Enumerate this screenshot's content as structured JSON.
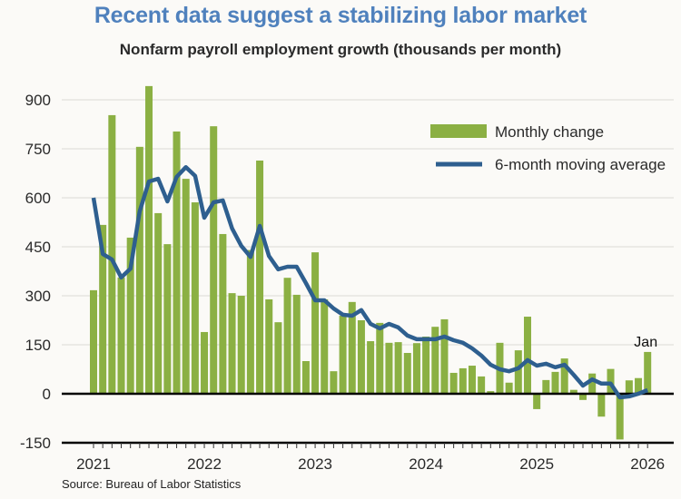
{
  "title": "Recent data suggest a stabilizing labor market",
  "subtitle": "Nonfarm payroll employment growth (thousands per month)",
  "source": "Source: Bureau of Labor Statistics",
  "colors": {
    "title": "#4f81bd",
    "bars": "#8bb043",
    "line": "#2e5f8f",
    "grid": "#e6e4e0",
    "axis": "#000000"
  },
  "chart_data": {
    "type": "bar",
    "title": "Nonfarm payroll employment growth (thousands per month)",
    "xlabel": "",
    "ylabel": "",
    "ylim": [
      -150,
      900
    ],
    "yticks": [
      -150,
      0,
      150,
      300,
      450,
      600,
      750,
      900
    ],
    "ytick_labels": [
      "-150",
      "0",
      "150",
      "300",
      "450",
      "600",
      "750",
      "900"
    ],
    "xtick_labels": [
      "2021",
      "2022",
      "2023",
      "2024",
      "2025",
      "2026"
    ],
    "grid": true,
    "legend_position": "top-right",
    "start": "2021-01",
    "categories": [
      "2021-01",
      "2021-02",
      "2021-03",
      "2021-04",
      "2021-05",
      "2021-06",
      "2021-07",
      "2021-08",
      "2021-09",
      "2021-10",
      "2021-11",
      "2021-12",
      "2022-01",
      "2022-02",
      "2022-03",
      "2022-04",
      "2022-05",
      "2022-06",
      "2022-07",
      "2022-08",
      "2022-09",
      "2022-10",
      "2022-11",
      "2022-12",
      "2023-01",
      "2023-02",
      "2023-03",
      "2023-04",
      "2023-05",
      "2023-06",
      "2023-07",
      "2023-08",
      "2023-09",
      "2023-10",
      "2023-11",
      "2023-12",
      "2024-01",
      "2024-02",
      "2024-03",
      "2024-04",
      "2024-05",
      "2024-06",
      "2024-07",
      "2024-08",
      "2024-09",
      "2024-10",
      "2024-11",
      "2024-12",
      "2025-01",
      "2025-02",
      "2025-03",
      "2025-04",
      "2025-05",
      "2025-06",
      "2025-07",
      "2025-08",
      "2025-09",
      "2025-10",
      "2025-11",
      "2025-12",
      "2026-01"
    ],
    "series": [
      {
        "name": "Monthly change",
        "type": "bar",
        "values": [
          317,
          517,
          853,
          356,
          478,
          756,
          942,
          553,
          458,
          803,
          658,
          586,
          189,
          819,
          489,
          308,
          300,
          440,
          714,
          289,
          219,
          355,
          303,
          100,
          433,
          289,
          69,
          239,
          281,
          225,
          161,
          217,
          156,
          158,
          125,
          155,
          175,
          205,
          228,
          64,
          78,
          86,
          53,
          8,
          156,
          34,
          133,
          236,
          -47,
          42,
          67,
          108,
          12,
          -19,
          62,
          -70,
          76,
          -140,
          41,
          48,
          128
        ]
      },
      {
        "name": "6-month moving average",
        "type": "line",
        "values": [
          600,
          428,
          411,
          356,
          383,
          558,
          650,
          658,
          589,
          664,
          694,
          667,
          539,
          586,
          592,
          506,
          453,
          419,
          514,
          422,
          381,
          389,
          389,
          339,
          286,
          286,
          261,
          242,
          239,
          256,
          214,
          200,
          214,
          203,
          178,
          167,
          167,
          167,
          175,
          164,
          156,
          139,
          117,
          89,
          75,
          69,
          78,
          103,
          86,
          92,
          81,
          89,
          58,
          25,
          44,
          31,
          31,
          -11,
          -8,
          0,
          11
        ]
      }
    ],
    "annotations": [
      {
        "text": "Jan",
        "target": "2026-01"
      }
    ]
  }
}
